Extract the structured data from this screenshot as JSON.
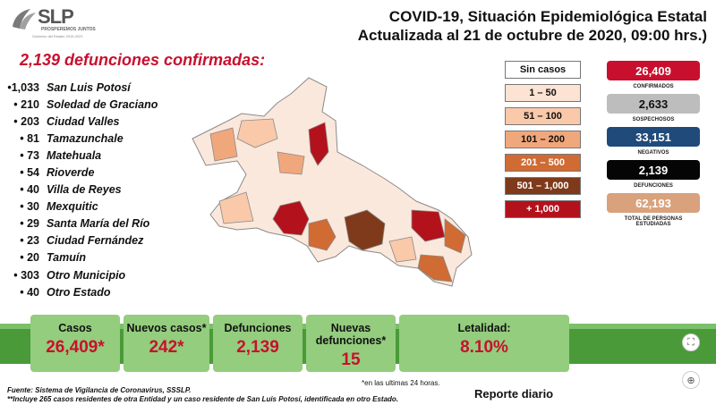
{
  "logo": {
    "main": "SLP",
    "line1": "PROSPEREMOS JUNTOS",
    "line2": "Gobierno del Estado 2015-2021"
  },
  "header": {
    "line1": "COVID-19, Situación Epidemiológica Estatal",
    "line2": "Actualizada al 21 de octubre de 2020, 09:00 hrs.)"
  },
  "deaths_title": "2,139 defunciones confirmadas:",
  "municipalities": [
    {
      "num": "•1,033",
      "name": "San Luis Potosí"
    },
    {
      "num": "• 210",
      "name": "Soledad de Graciano"
    },
    {
      "num": "• 203",
      "name": "Ciudad Valles"
    },
    {
      "num": "• 81",
      "name": "Tamazunchale"
    },
    {
      "num": "• 73",
      "name": "Matehuala"
    },
    {
      "num": "• 54",
      "name": "Rioverde"
    },
    {
      "num": "• 40",
      "name": "Villa de Reyes"
    },
    {
      "num": "• 30",
      "name": "Mexquitic"
    },
    {
      "num": "• 29",
      "name": "Santa María del Río"
    },
    {
      "num": "• 23",
      "name": "Ciudad Fernández"
    },
    {
      "num": "• 20",
      "name": "Tamuín"
    },
    {
      "num": "• 303",
      "name": "Otro Municipio"
    },
    {
      "num": "• 40",
      "name": "Otro Estado"
    }
  ],
  "legend": [
    {
      "label": "Sin casos",
      "bg": "#ffffff",
      "color": "#111111"
    },
    {
      "label": "1 – 50",
      "bg": "#fde3d3",
      "color": "#111111"
    },
    {
      "label": "51 – 100",
      "bg": "#f9c9a9",
      "color": "#111111"
    },
    {
      "label": "101 – 200",
      "bg": "#f1a77c",
      "color": "#111111"
    },
    {
      "label": "201 – 500",
      "bg": "#d06b33",
      "color": "#ffffff"
    },
    {
      "label": "501 – 1,000",
      "bg": "#7e3a1a",
      "color": "#ffffff"
    },
    {
      "label": "+ 1,000",
      "bg": "#b3121d",
      "color": "#ffffff"
    }
  ],
  "stats": [
    {
      "value": "26,409",
      "label": "CONFIRMADOS",
      "bg": "#c8102e",
      "color": "#ffffff"
    },
    {
      "value": "2,633",
      "label": "SOSPECHOSOS",
      "bg": "#bdbdbd",
      "color": "#111111"
    },
    {
      "value": "33,151",
      "label": "NEGATIVOS",
      "bg": "#1f4a7a",
      "color": "#ffffff"
    },
    {
      "value": "2,139",
      "label": "DEFUNCIONES",
      "bg": "#050505",
      "color": "#ffffff"
    },
    {
      "value": "62,193",
      "label": "TOTAL DE PERSONAS ESTUDIADAS",
      "bg": "#d9a27c",
      "color": "#ffffff"
    }
  ],
  "cards": [
    {
      "label": "Casos",
      "value": "26,409*"
    },
    {
      "label": "Nuevos casos*",
      "value": "242*"
    },
    {
      "label": "Defunciones",
      "value": "2,139"
    },
    {
      "label": "Nuevas defunciones*",
      "value": "15"
    },
    {
      "label": "Letalidad:",
      "value": "8.10%"
    }
  ],
  "footer": {
    "note": "*en las ultimas 24 horas.",
    "source": "Fuente: Sistema de Vigilancia de Coronavirus, SSSLP.",
    "source2": "**Incluye 265 casos residentes de otra Entidad y un caso residente de San Luis Potosí, identificada en otro Estado.",
    "report": "Reporte diario"
  },
  "controls": {
    "expand": "⛶",
    "zoom": "⊕"
  }
}
